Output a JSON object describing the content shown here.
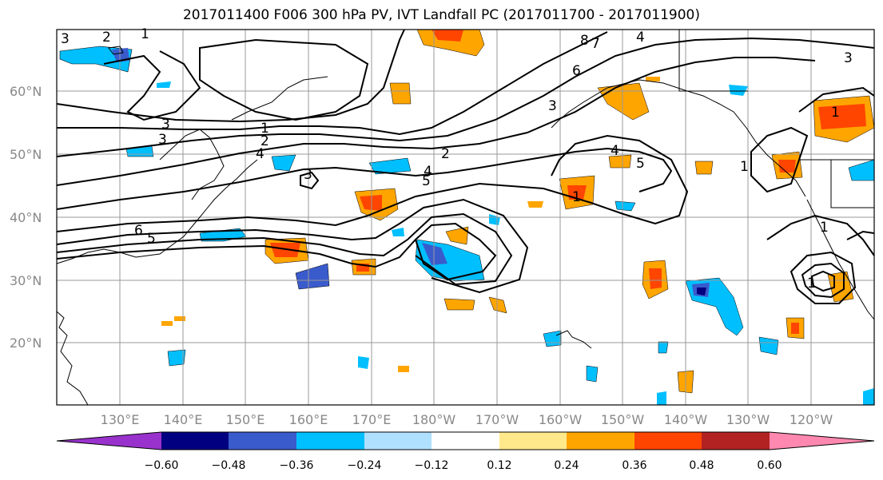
{
  "title": "2017011400 F006 300 hPa PV, IVT Landfall PC (2017011700 - 2017011900)",
  "lat_labels": [
    "60°N",
    "50°N",
    "40°N",
    "30°N",
    "20°N"
  ],
  "lon_labels": [
    "130°E",
    "140°E",
    "150°E",
    "160°E",
    "170°E",
    "180°W",
    "170°W",
    "160°W",
    "150°W",
    "140°W",
    "130°W",
    "120°W"
  ],
  "colorbar": {
    "ticks": [
      "−0.60",
      "−0.48",
      "−0.36",
      "−0.24",
      "−0.12",
      "0.12",
      "0.24",
      "0.36",
      "0.48",
      "0.60"
    ],
    "colors": [
      "#9932CC",
      "#000080",
      "#3A5BCC",
      "#00BFFF",
      "#B0E0FF",
      "#FFFFFF",
      "#FFE98A",
      "#FFA500",
      "#FF4500",
      "#B22222",
      "#FF88B0"
    ]
  },
  "contour_labels": [
    "3",
    "2",
    "1",
    "3",
    "1",
    "2",
    "3",
    "4",
    "6",
    "5",
    "3",
    "2",
    "4",
    "5",
    "8",
    "7",
    "6",
    "4",
    "3",
    "5",
    "4",
    "1",
    "1",
    "3",
    "1",
    "1",
    "1"
  ]
}
